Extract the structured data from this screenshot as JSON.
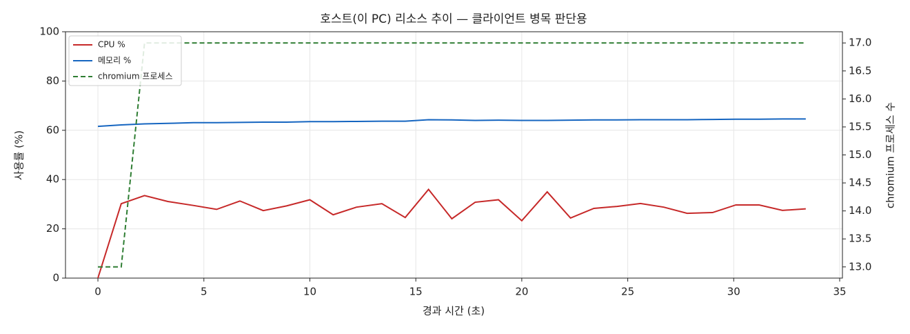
{
  "chart_data": {
    "type": "line",
    "title": "호스트(이 PC) 리소스 추이 — 클라이언트 병목 판단용",
    "x_label": "경과 시간 (초)",
    "y_label": "사용률 (%)",
    "y2_label": "chromium 프로세스 수",
    "x": [
      0,
      1.1,
      2.2,
      3.3,
      4.5,
      5.6,
      6.7,
      7.8,
      8.9,
      10.0,
      11.1,
      12.2,
      13.4,
      14.5,
      15.6,
      16.7,
      17.8,
      18.9,
      20.0,
      21.2,
      22.3,
      23.4,
      24.5,
      25.6,
      26.7,
      27.8,
      29.0,
      30.1,
      31.2,
      32.3,
      33.4
    ],
    "series": [
      {
        "name": "CPU %",
        "color": "#c62828",
        "dashed": false,
        "values": [
          0,
          30.2,
          33.5,
          31.1,
          29.5,
          27.9,
          31.3,
          27.4,
          29.3,
          31.8,
          25.7,
          28.8,
          30.2,
          24.6,
          36.0,
          24.1,
          30.8,
          31.8,
          23.3,
          35.0,
          24.4,
          28.3,
          29.1,
          30.3,
          28.8,
          26.3,
          26.6,
          29.7,
          29.7,
          27.5,
          28.1
        ]
      },
      {
        "name": "메모리 %",
        "color": "#1565c0",
        "dashed": false,
        "values": [
          61.6,
          62.2,
          62.6,
          62.8,
          63.1,
          63.1,
          63.2,
          63.3,
          63.3,
          63.5,
          63.5,
          63.6,
          63.7,
          63.7,
          64.3,
          64.2,
          64.0,
          64.1,
          64.0,
          64.0,
          64.1,
          64.2,
          64.2,
          64.3,
          64.3,
          64.3,
          64.4,
          64.5,
          64.5,
          64.6,
          64.6
        ]
      },
      {
        "name": "chromium 프로세스",
        "color": "#2e7d32",
        "dashed": true,
        "axis": "y2",
        "values": [
          13,
          13,
          17,
          17,
          17,
          17,
          17,
          17,
          17,
          17,
          17,
          17,
          17,
          17,
          17,
          17,
          17,
          17,
          17,
          17,
          17,
          17,
          17,
          17,
          17,
          17,
          17,
          17,
          17,
          17,
          17
        ]
      }
    ],
    "xlim": [
      -1.53,
      35.13
    ],
    "xticks": [
      0,
      5,
      10,
      15,
      20,
      25,
      30,
      35
    ],
    "ylim": [
      0,
      100
    ],
    "yticks": [
      0,
      20,
      40,
      60,
      80,
      100
    ],
    "y2lim": [
      12.8,
      17.2
    ],
    "y2ticks": [
      {
        "value": 13,
        "label": "13.0"
      },
      {
        "value": 13.5,
        "label": "13.5"
      },
      {
        "value": 14,
        "label": "14.0"
      },
      {
        "value": 14.5,
        "label": "14.5"
      },
      {
        "value": 15,
        "label": "15.0"
      },
      {
        "value": 15.5,
        "label": "15.5"
      },
      {
        "value": 16,
        "label": "16.0"
      },
      {
        "value": 16.5,
        "label": "16.5"
      },
      {
        "value": 17,
        "label": "17.0"
      }
    ],
    "grid": true,
    "legend": "upper-left"
  }
}
